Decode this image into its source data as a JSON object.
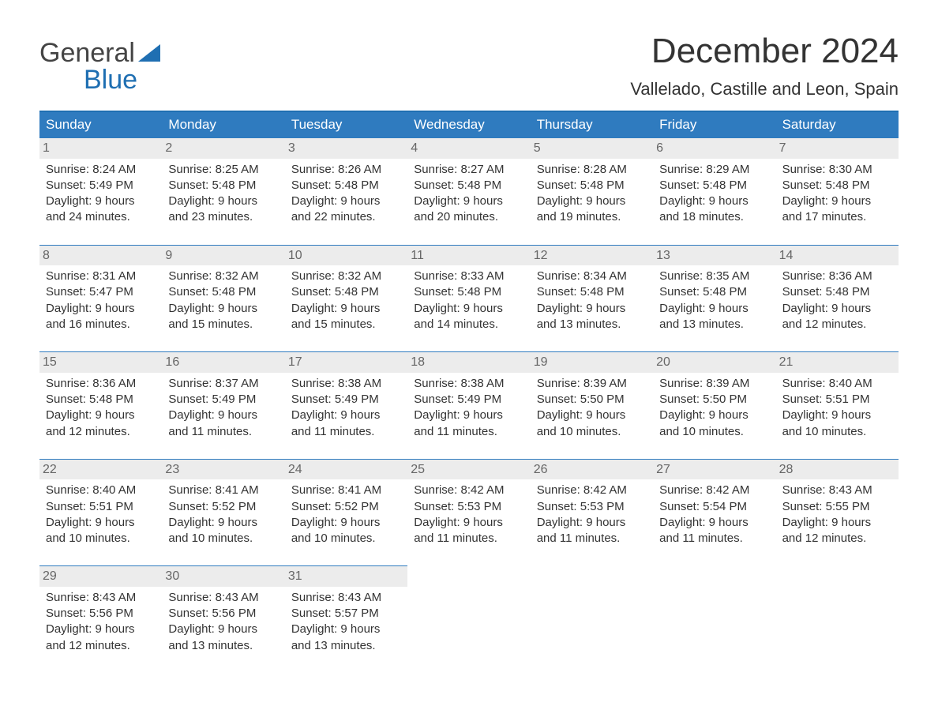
{
  "brand": {
    "word1": "General",
    "word2": "Blue"
  },
  "title": "December 2024",
  "location": "Vallelado, Castille and Leon, Spain",
  "colors": {
    "header_bg": "#2f7bbf",
    "header_fg": "#ffffff",
    "accent": "#1f6fb2",
    "date_bar_bg": "#ececec",
    "date_bar_fg": "#666666",
    "body_text": "#333333",
    "background": "#ffffff"
  },
  "typography": {
    "month_title_fontsize": 44,
    "location_fontsize": 22,
    "dow_fontsize": 17,
    "cell_fontsize": 15
  },
  "days_of_week": [
    "Sunday",
    "Monday",
    "Tuesday",
    "Wednesday",
    "Thursday",
    "Friday",
    "Saturday"
  ],
  "weeks": [
    [
      {
        "date": "1",
        "sunrise": "Sunrise: 8:24 AM",
        "sunset": "Sunset: 5:49 PM",
        "d1": "Daylight: 9 hours",
        "d2": "and 24 minutes."
      },
      {
        "date": "2",
        "sunrise": "Sunrise: 8:25 AM",
        "sunset": "Sunset: 5:48 PM",
        "d1": "Daylight: 9 hours",
        "d2": "and 23 minutes."
      },
      {
        "date": "3",
        "sunrise": "Sunrise: 8:26 AM",
        "sunset": "Sunset: 5:48 PM",
        "d1": "Daylight: 9 hours",
        "d2": "and 22 minutes."
      },
      {
        "date": "4",
        "sunrise": "Sunrise: 8:27 AM",
        "sunset": "Sunset: 5:48 PM",
        "d1": "Daylight: 9 hours",
        "d2": "and 20 minutes."
      },
      {
        "date": "5",
        "sunrise": "Sunrise: 8:28 AM",
        "sunset": "Sunset: 5:48 PM",
        "d1": "Daylight: 9 hours",
        "d2": "and 19 minutes."
      },
      {
        "date": "6",
        "sunrise": "Sunrise: 8:29 AM",
        "sunset": "Sunset: 5:48 PM",
        "d1": "Daylight: 9 hours",
        "d2": "and 18 minutes."
      },
      {
        "date": "7",
        "sunrise": "Sunrise: 8:30 AM",
        "sunset": "Sunset: 5:48 PM",
        "d1": "Daylight: 9 hours",
        "d2": "and 17 minutes."
      }
    ],
    [
      {
        "date": "8",
        "sunrise": "Sunrise: 8:31 AM",
        "sunset": "Sunset: 5:47 PM",
        "d1": "Daylight: 9 hours",
        "d2": "and 16 minutes."
      },
      {
        "date": "9",
        "sunrise": "Sunrise: 8:32 AM",
        "sunset": "Sunset: 5:48 PM",
        "d1": "Daylight: 9 hours",
        "d2": "and 15 minutes."
      },
      {
        "date": "10",
        "sunrise": "Sunrise: 8:32 AM",
        "sunset": "Sunset: 5:48 PM",
        "d1": "Daylight: 9 hours",
        "d2": "and 15 minutes."
      },
      {
        "date": "11",
        "sunrise": "Sunrise: 8:33 AM",
        "sunset": "Sunset: 5:48 PM",
        "d1": "Daylight: 9 hours",
        "d2": "and 14 minutes."
      },
      {
        "date": "12",
        "sunrise": "Sunrise: 8:34 AM",
        "sunset": "Sunset: 5:48 PM",
        "d1": "Daylight: 9 hours",
        "d2": "and 13 minutes."
      },
      {
        "date": "13",
        "sunrise": "Sunrise: 8:35 AM",
        "sunset": "Sunset: 5:48 PM",
        "d1": "Daylight: 9 hours",
        "d2": "and 13 minutes."
      },
      {
        "date": "14",
        "sunrise": "Sunrise: 8:36 AM",
        "sunset": "Sunset: 5:48 PM",
        "d1": "Daylight: 9 hours",
        "d2": "and 12 minutes."
      }
    ],
    [
      {
        "date": "15",
        "sunrise": "Sunrise: 8:36 AM",
        "sunset": "Sunset: 5:48 PM",
        "d1": "Daylight: 9 hours",
        "d2": "and 12 minutes."
      },
      {
        "date": "16",
        "sunrise": "Sunrise: 8:37 AM",
        "sunset": "Sunset: 5:49 PM",
        "d1": "Daylight: 9 hours",
        "d2": "and 11 minutes."
      },
      {
        "date": "17",
        "sunrise": "Sunrise: 8:38 AM",
        "sunset": "Sunset: 5:49 PM",
        "d1": "Daylight: 9 hours",
        "d2": "and 11 minutes."
      },
      {
        "date": "18",
        "sunrise": "Sunrise: 8:38 AM",
        "sunset": "Sunset: 5:49 PM",
        "d1": "Daylight: 9 hours",
        "d2": "and 11 minutes."
      },
      {
        "date": "19",
        "sunrise": "Sunrise: 8:39 AM",
        "sunset": "Sunset: 5:50 PM",
        "d1": "Daylight: 9 hours",
        "d2": "and 10 minutes."
      },
      {
        "date": "20",
        "sunrise": "Sunrise: 8:39 AM",
        "sunset": "Sunset: 5:50 PM",
        "d1": "Daylight: 9 hours",
        "d2": "and 10 minutes."
      },
      {
        "date": "21",
        "sunrise": "Sunrise: 8:40 AM",
        "sunset": "Sunset: 5:51 PM",
        "d1": "Daylight: 9 hours",
        "d2": "and 10 minutes."
      }
    ],
    [
      {
        "date": "22",
        "sunrise": "Sunrise: 8:40 AM",
        "sunset": "Sunset: 5:51 PM",
        "d1": "Daylight: 9 hours",
        "d2": "and 10 minutes."
      },
      {
        "date": "23",
        "sunrise": "Sunrise: 8:41 AM",
        "sunset": "Sunset: 5:52 PM",
        "d1": "Daylight: 9 hours",
        "d2": "and 10 minutes."
      },
      {
        "date": "24",
        "sunrise": "Sunrise: 8:41 AM",
        "sunset": "Sunset: 5:52 PM",
        "d1": "Daylight: 9 hours",
        "d2": "and 10 minutes."
      },
      {
        "date": "25",
        "sunrise": "Sunrise: 8:42 AM",
        "sunset": "Sunset: 5:53 PM",
        "d1": "Daylight: 9 hours",
        "d2": "and 11 minutes."
      },
      {
        "date": "26",
        "sunrise": "Sunrise: 8:42 AM",
        "sunset": "Sunset: 5:53 PM",
        "d1": "Daylight: 9 hours",
        "d2": "and 11 minutes."
      },
      {
        "date": "27",
        "sunrise": "Sunrise: 8:42 AM",
        "sunset": "Sunset: 5:54 PM",
        "d1": "Daylight: 9 hours",
        "d2": "and 11 minutes."
      },
      {
        "date": "28",
        "sunrise": "Sunrise: 8:43 AM",
        "sunset": "Sunset: 5:55 PM",
        "d1": "Daylight: 9 hours",
        "d2": "and 12 minutes."
      }
    ],
    [
      {
        "date": "29",
        "sunrise": "Sunrise: 8:43 AM",
        "sunset": "Sunset: 5:56 PM",
        "d1": "Daylight: 9 hours",
        "d2": "and 12 minutes."
      },
      {
        "date": "30",
        "sunrise": "Sunrise: 8:43 AM",
        "sunset": "Sunset: 5:56 PM",
        "d1": "Daylight: 9 hours",
        "d2": "and 13 minutes."
      },
      {
        "date": "31",
        "sunrise": "Sunrise: 8:43 AM",
        "sunset": "Sunset: 5:57 PM",
        "d1": "Daylight: 9 hours",
        "d2": "and 13 minutes."
      },
      null,
      null,
      null,
      null
    ]
  ]
}
